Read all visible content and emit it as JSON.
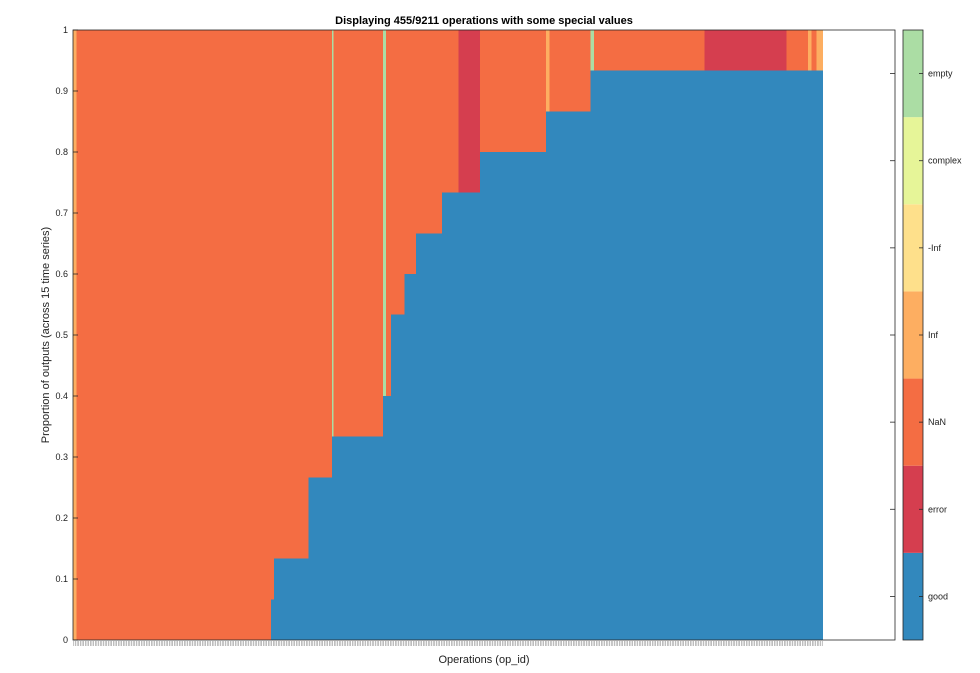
{
  "chart_data": {
    "type": "area",
    "title": "Displaying 455/9211 operations with some special values",
    "xlabel": "Operations (op_id)",
    "ylabel": "Proportion of outputs (across 15 time series)",
    "ylim": [
      0,
      1
    ],
    "yticks": [
      "0",
      "0.1",
      "0.2",
      "0.3",
      "0.4",
      "0.5",
      "0.6",
      "0.7",
      "0.8",
      "0.9",
      "1"
    ],
    "n_operations": 455,
    "grid": false,
    "legend": "colorbar-right",
    "categories": [
      {
        "name": "good",
        "color": "#3288bd"
      },
      {
        "name": "error",
        "color": "#d53e4f"
      },
      {
        "name": "NaN",
        "color": "#f46d43"
      },
      {
        "name": "Inf",
        "color": "#fdae61"
      },
      {
        "name": "-Inf",
        "color": "#fee08b"
      },
      {
        "name": "complex",
        "color": "#e6f598"
      },
      {
        "name": "empty",
        "color": "#abdda4"
      }
    ],
    "segments": [
      {
        "x": [
          0,
          2
        ],
        "good": 0,
        "error": 0,
        "NaN": 0,
        "Inf": 1,
        "-Inf": 0,
        "complex": 0,
        "empty": 0
      },
      {
        "x": [
          2,
          120
        ],
        "good": 0,
        "error": 0,
        "NaN": 1,
        "Inf": 0,
        "-Inf": 0,
        "complex": 0,
        "empty": 0
      },
      {
        "x": [
          120,
          122
        ],
        "good": 0.0667,
        "error": 0,
        "NaN": 0.9333,
        "Inf": 0,
        "-Inf": 0,
        "complex": 0,
        "empty": 0
      },
      {
        "x": [
          122,
          143
        ],
        "good": 0.1333,
        "error": 0,
        "NaN": 0.8667,
        "Inf": 0,
        "-Inf": 0,
        "complex": 0,
        "empty": 0
      },
      {
        "x": [
          143,
          157
        ],
        "good": 0.2667,
        "error": 0,
        "NaN": 0.7333,
        "Inf": 0,
        "-Inf": 0,
        "complex": 0,
        "empty": 0
      },
      {
        "x": [
          157,
          158
        ],
        "good": 0.3333,
        "error": 0,
        "NaN": 0,
        "Inf": 0,
        "-Inf": 0,
        "complex": 0,
        "empty": 0.6667
      },
      {
        "x": [
          158,
          188
        ],
        "good": 0.3333,
        "error": 0,
        "NaN": 0.6667,
        "Inf": 0,
        "-Inf": 0,
        "complex": 0,
        "empty": 0
      },
      {
        "x": [
          188,
          190
        ],
        "good": 0.4,
        "error": 0,
        "NaN": 0,
        "Inf": 0,
        "-Inf": 0,
        "complex": 0,
        "empty": 0.6
      },
      {
        "x": [
          190,
          193
        ],
        "good": 0.4,
        "error": 0,
        "NaN": 0.6,
        "Inf": 0,
        "-Inf": 0,
        "complex": 0,
        "empty": 0
      },
      {
        "x": [
          193,
          201
        ],
        "good": 0.5333,
        "error": 0,
        "NaN": 0.4667,
        "Inf": 0,
        "-Inf": 0,
        "complex": 0,
        "empty": 0
      },
      {
        "x": [
          201,
          208
        ],
        "good": 0.6,
        "error": 0,
        "NaN": 0.4,
        "Inf": 0,
        "-Inf": 0,
        "complex": 0,
        "empty": 0
      },
      {
        "x": [
          208,
          224
        ],
        "good": 0.6667,
        "error": 0,
        "NaN": 0.3333,
        "Inf": 0,
        "-Inf": 0,
        "complex": 0,
        "empty": 0
      },
      {
        "x": [
          224,
          234
        ],
        "good": 0.7333,
        "error": 0,
        "NaN": 0.2667,
        "Inf": 0,
        "-Inf": 0,
        "complex": 0,
        "empty": 0
      },
      {
        "x": [
          234,
          247
        ],
        "good": 0.7333,
        "error": 0.2667,
        "NaN": 0,
        "Inf": 0,
        "-Inf": 0,
        "complex": 0,
        "empty": 0
      },
      {
        "x": [
          247,
          287
        ],
        "good": 0.8,
        "error": 0,
        "NaN": 0.2,
        "Inf": 0,
        "-Inf": 0,
        "complex": 0,
        "empty": 0
      },
      {
        "x": [
          287,
          289
        ],
        "good": 0.8667,
        "error": 0,
        "NaN": 0,
        "Inf": 0.1333,
        "-Inf": 0,
        "complex": 0,
        "empty": 0
      },
      {
        "x": [
          289,
          314
        ],
        "good": 0.8667,
        "error": 0,
        "NaN": 0.1333,
        "Inf": 0,
        "-Inf": 0,
        "complex": 0,
        "empty": 0
      },
      {
        "x": [
          314,
          316
        ],
        "good": 0.9333,
        "error": 0,
        "NaN": 0,
        "Inf": 0,
        "-Inf": 0,
        "complex": 0,
        "empty": 0.0667
      },
      {
        "x": [
          316,
          383
        ],
        "good": 0.9333,
        "error": 0,
        "NaN": 0.0667,
        "Inf": 0,
        "-Inf": 0,
        "complex": 0,
        "empty": 0
      },
      {
        "x": [
          383,
          433
        ],
        "good": 0.9333,
        "error": 0.0667,
        "NaN": 0,
        "Inf": 0,
        "-Inf": 0,
        "complex": 0,
        "empty": 0
      },
      {
        "x": [
          433,
          446
        ],
        "good": 0.9333,
        "error": 0,
        "NaN": 0.0667,
        "Inf": 0,
        "-Inf": 0,
        "complex": 0,
        "empty": 0
      },
      {
        "x": [
          446,
          448
        ],
        "good": 0.9333,
        "error": 0,
        "NaN": 0,
        "Inf": 0.0667,
        "-Inf": 0,
        "complex": 0,
        "empty": 0
      },
      {
        "x": [
          448,
          451
        ],
        "good": 0.9333,
        "error": 0,
        "NaN": 0.0667,
        "Inf": 0,
        "-Inf": 0,
        "complex": 0,
        "empty": 0
      },
      {
        "x": [
          451,
          455
        ],
        "good": 0.9333,
        "error": 0,
        "NaN": 0,
        "Inf": 0.0667,
        "-Inf": 0,
        "complex": 0,
        "empty": 0
      }
    ]
  }
}
